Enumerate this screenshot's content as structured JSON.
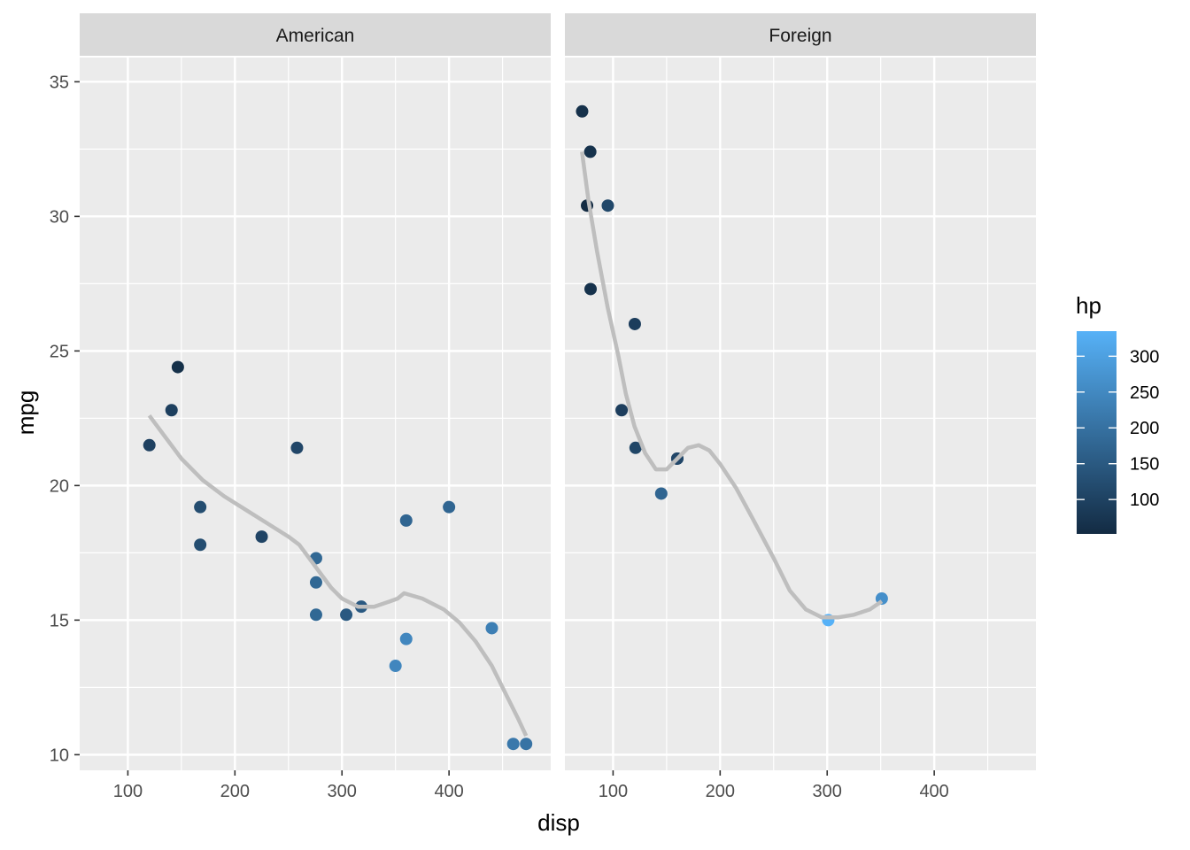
{
  "chart_data": {
    "type": "scatter",
    "xlabel": "disp",
    "ylabel": "mpg",
    "xlim": [
      55,
      495
    ],
    "ylim": [
      9.42,
      35.9
    ],
    "x_ticks": [
      100,
      200,
      300,
      400
    ],
    "y_ticks": [
      10,
      15,
      20,
      25,
      30,
      35
    ],
    "grid": true,
    "color_scale": {
      "title": "hp",
      "low_color": "#132b43",
      "high_color": "#56b1f7",
      "range": [
        52,
        335
      ],
      "ticks": [
        100,
        150,
        200,
        250,
        300
      ]
    },
    "legend_position": "right",
    "smooth_color": "#bebebe",
    "panels": [
      {
        "name": "American",
        "points": [
          {
            "x": 120.1,
            "y": 21.5,
            "hp": 97
          },
          {
            "x": 140.8,
            "y": 22.8,
            "hp": 95
          },
          {
            "x": 146.7,
            "y": 24.4,
            "hp": 62
          },
          {
            "x": 167.6,
            "y": 19.2,
            "hp": 123
          },
          {
            "x": 167.6,
            "y": 17.8,
            "hp": 123
          },
          {
            "x": 225.0,
            "y": 18.1,
            "hp": 105
          },
          {
            "x": 258.0,
            "y": 21.4,
            "hp": 110
          },
          {
            "x": 275.8,
            "y": 17.3,
            "hp": 180
          },
          {
            "x": 275.8,
            "y": 16.4,
            "hp": 180
          },
          {
            "x": 275.8,
            "y": 15.2,
            "hp": 180
          },
          {
            "x": 304.0,
            "y": 15.2,
            "hp": 150
          },
          {
            "x": 318.0,
            "y": 15.5,
            "hp": 150
          },
          {
            "x": 350.0,
            "y": 13.3,
            "hp": 245
          },
          {
            "x": 360.0,
            "y": 18.7,
            "hp": 175
          },
          {
            "x": 360.0,
            "y": 14.3,
            "hp": 245
          },
          {
            "x": 400.0,
            "y": 19.2,
            "hp": 175
          },
          {
            "x": 440.0,
            "y": 14.7,
            "hp": 230
          },
          {
            "x": 460.0,
            "y": 10.4,
            "hp": 215
          },
          {
            "x": 472.0,
            "y": 10.4,
            "hp": 205
          }
        ],
        "smooth": [
          {
            "x": 120,
            "y": 22.6
          },
          {
            "x": 135,
            "y": 21.8
          },
          {
            "x": 150,
            "y": 21.0
          },
          {
            "x": 170,
            "y": 20.2
          },
          {
            "x": 190,
            "y": 19.6
          },
          {
            "x": 210,
            "y": 19.1
          },
          {
            "x": 230,
            "y": 18.6
          },
          {
            "x": 250,
            "y": 18.1
          },
          {
            "x": 260,
            "y": 17.8
          },
          {
            "x": 275,
            "y": 17.0
          },
          {
            "x": 290,
            "y": 16.2
          },
          {
            "x": 300,
            "y": 15.8
          },
          {
            "x": 315,
            "y": 15.5
          },
          {
            "x": 330,
            "y": 15.5
          },
          {
            "x": 345,
            "y": 15.7
          },
          {
            "x": 352,
            "y": 15.8
          },
          {
            "x": 358,
            "y": 16.0
          },
          {
            "x": 375,
            "y": 15.8
          },
          {
            "x": 395,
            "y": 15.4
          },
          {
            "x": 410,
            "y": 14.9
          },
          {
            "x": 425,
            "y": 14.2
          },
          {
            "x": 440,
            "y": 13.3
          },
          {
            "x": 455,
            "y": 12.1
          },
          {
            "x": 465,
            "y": 11.3
          },
          {
            "x": 472,
            "y": 10.7
          }
        ]
      },
      {
        "name": "Foreign",
        "points": [
          {
            "x": 71.1,
            "y": 33.9,
            "hp": 65
          },
          {
            "x": 78.7,
            "y": 32.4,
            "hp": 66
          },
          {
            "x": 75.7,
            "y": 30.4,
            "hp": 52
          },
          {
            "x": 95.1,
            "y": 30.4,
            "hp": 113
          },
          {
            "x": 79.0,
            "y": 27.3,
            "hp": 66
          },
          {
            "x": 120.3,
            "y": 26.0,
            "hp": 91
          },
          {
            "x": 108.0,
            "y": 22.8,
            "hp": 93
          },
          {
            "x": 121.0,
            "y": 21.4,
            "hp": 109
          },
          {
            "x": 160.0,
            "y": 21.0,
            "hp": 110
          },
          {
            "x": 160.0,
            "y": 21.0,
            "hp": 110
          },
          {
            "x": 145.0,
            "y": 19.7,
            "hp": 175
          },
          {
            "x": 301.0,
            "y": 15.0,
            "hp": 335
          },
          {
            "x": 351.0,
            "y": 15.8,
            "hp": 264
          }
        ],
        "smooth": [
          {
            "x": 71,
            "y": 32.4
          },
          {
            "x": 77,
            "y": 30.6
          },
          {
            "x": 85,
            "y": 28.7
          },
          {
            "x": 95,
            "y": 26.6
          },
          {
            "x": 105,
            "y": 24.8
          },
          {
            "x": 112,
            "y": 23.4
          },
          {
            "x": 120,
            "y": 22.2
          },
          {
            "x": 130,
            "y": 21.2
          },
          {
            "x": 140,
            "y": 20.6
          },
          {
            "x": 150,
            "y": 20.6
          },
          {
            "x": 160,
            "y": 21.0
          },
          {
            "x": 170,
            "y": 21.4
          },
          {
            "x": 180,
            "y": 21.5
          },
          {
            "x": 190,
            "y": 21.3
          },
          {
            "x": 200,
            "y": 20.8
          },
          {
            "x": 215,
            "y": 19.9
          },
          {
            "x": 230,
            "y": 18.8
          },
          {
            "x": 250,
            "y": 17.3
          },
          {
            "x": 265,
            "y": 16.1
          },
          {
            "x": 280,
            "y": 15.4
          },
          {
            "x": 295,
            "y": 15.1
          },
          {
            "x": 310,
            "y": 15.1
          },
          {
            "x": 325,
            "y": 15.2
          },
          {
            "x": 340,
            "y": 15.4
          },
          {
            "x": 351,
            "y": 15.7
          }
        ]
      }
    ]
  }
}
